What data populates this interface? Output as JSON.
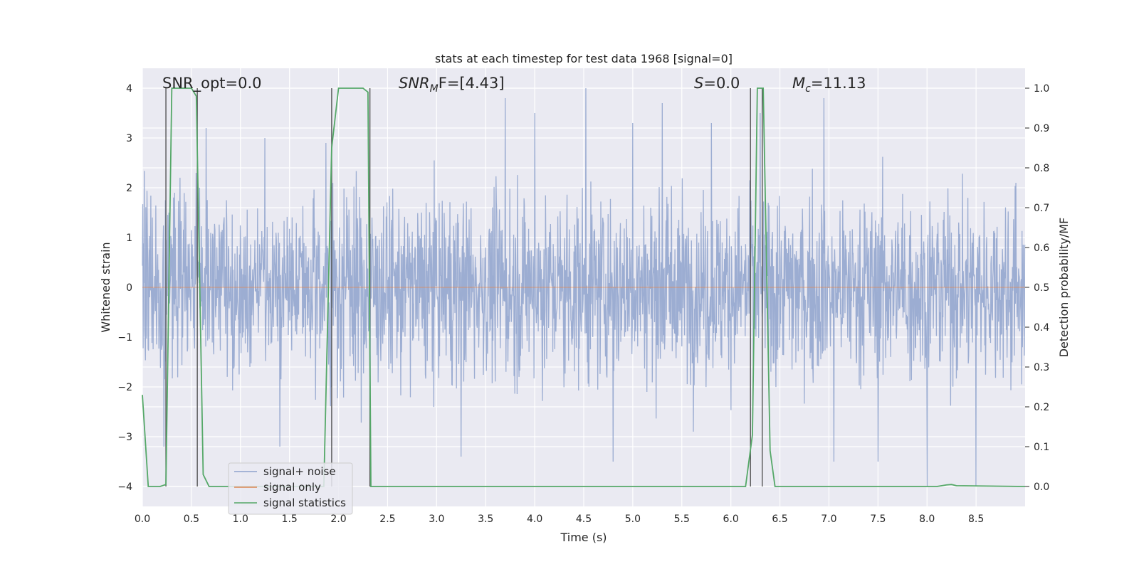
{
  "chart_data": {
    "type": "line",
    "title": "stats at each timestep for test data 1968 [signal=0]",
    "xlabel": "Time (s)",
    "ylabel": "Whitened strain",
    "y2label": "Detection probability/MF",
    "xlim": [
      0.0,
      9.0
    ],
    "ylim": [
      -4.4,
      4.4
    ],
    "y2lim": [
      -0.05,
      1.05
    ],
    "xticks": [
      "0.0",
      "0.5",
      "1.0",
      "1.5",
      "2.0",
      "2.5",
      "3.0",
      "3.5",
      "4.0",
      "4.5",
      "5.0",
      "5.5",
      "6.0",
      "6.5",
      "7.0",
      "7.5",
      "8.0",
      "8.5"
    ],
    "xtick_values": [
      0.0,
      0.5,
      1.0,
      1.5,
      2.0,
      2.5,
      3.0,
      3.5,
      4.0,
      4.5,
      5.0,
      5.5,
      6.0,
      6.5,
      7.0,
      7.5,
      8.0,
      8.5
    ],
    "yticks": [
      "−4",
      "−3",
      "−2",
      "−1",
      "0",
      "1",
      "2",
      "3",
      "4"
    ],
    "ytick_values": [
      -4,
      -3,
      -2,
      -1,
      0,
      1,
      2,
      3,
      4
    ],
    "y2ticks": [
      "0.0",
      "0.1",
      "0.2",
      "0.3",
      "0.4",
      "0.5",
      "0.6",
      "0.7",
      "0.8",
      "0.9",
      "1.0"
    ],
    "y2tick_values": [
      0.0,
      0.1,
      0.2,
      0.3,
      0.4,
      0.5,
      0.6,
      0.7,
      0.8,
      0.9,
      1.0
    ],
    "grid": true,
    "legend_position": "bottom-left",
    "series": [
      {
        "name": "signal+ noise",
        "color": "#8ea2cd",
        "axis": "left",
        "description": "whitened strain noise, roughly within ±2.5 with spikes up to ±4",
        "notable_spikes": [
          [
            0.22,
            -3.2
          ],
          [
            0.55,
            2.3
          ],
          [
            0.65,
            3.2
          ],
          [
            1.25,
            3.0
          ],
          [
            1.4,
            -3.2
          ],
          [
            1.87,
            2.9
          ],
          [
            2.32,
            -4.0
          ],
          [
            3.25,
            -3.4
          ],
          [
            3.7,
            3.8
          ],
          [
            4.0,
            3.5
          ],
          [
            4.52,
            4.0
          ],
          [
            4.8,
            -3.5
          ],
          [
            5.0,
            3.3
          ],
          [
            5.3,
            3.7
          ],
          [
            5.8,
            3.3
          ],
          [
            6.3,
            3.5
          ],
          [
            6.95,
            3.8
          ],
          [
            7.05,
            -3.5
          ],
          [
            7.5,
            -3.5
          ],
          [
            8.0,
            -4.0
          ],
          [
            8.5,
            -4.0
          ]
        ]
      },
      {
        "name": "signal only",
        "color": "#dd8452",
        "axis": "left",
        "x": [
          0.0,
          9.0
        ],
        "y": [
          0.0,
          0.0
        ]
      },
      {
        "name": "signal statistics",
        "color": "#55a868",
        "axis": "right",
        "x": [
          0.0,
          0.06,
          0.18,
          0.24,
          0.3,
          0.5,
          0.55,
          0.62,
          0.68,
          1.85,
          1.93,
          2.0,
          2.25,
          2.3,
          2.33,
          2.45,
          6.15,
          6.22,
          6.27,
          6.33,
          6.4,
          6.45,
          8.1,
          8.2,
          8.25,
          8.3,
          9.0
        ],
        "y": [
          0.23,
          0.0,
          0.0,
          0.005,
          1.0,
          1.0,
          0.98,
          0.03,
          0.0,
          0.0,
          0.85,
          1.0,
          1.0,
          0.99,
          0.0,
          0.0,
          0.0,
          0.13,
          1.0,
          1.0,
          0.09,
          0.0,
          0.0,
          0.004,
          0.005,
          0.002,
          0.0
        ]
      }
    ],
    "vertical_lines": [
      0.24,
      0.56,
      1.93,
      2.32,
      6.2,
      6.32
    ],
    "vertical_lines_color": "#555555",
    "annotations": [
      {
        "text": "SNR_opt=0.0",
        "x": 0.2
      },
      {
        "text": "F=[4.43]",
        "pre": "SNR",
        "sub": "M",
        "x": 2.6
      },
      {
        "text": "=0.0",
        "pre": "S",
        "sub": "",
        "x": 5.6
      },
      {
        "text": "=11.13",
        "pre": "M",
        "sub": "c",
        "x": 6.6
      }
    ]
  }
}
